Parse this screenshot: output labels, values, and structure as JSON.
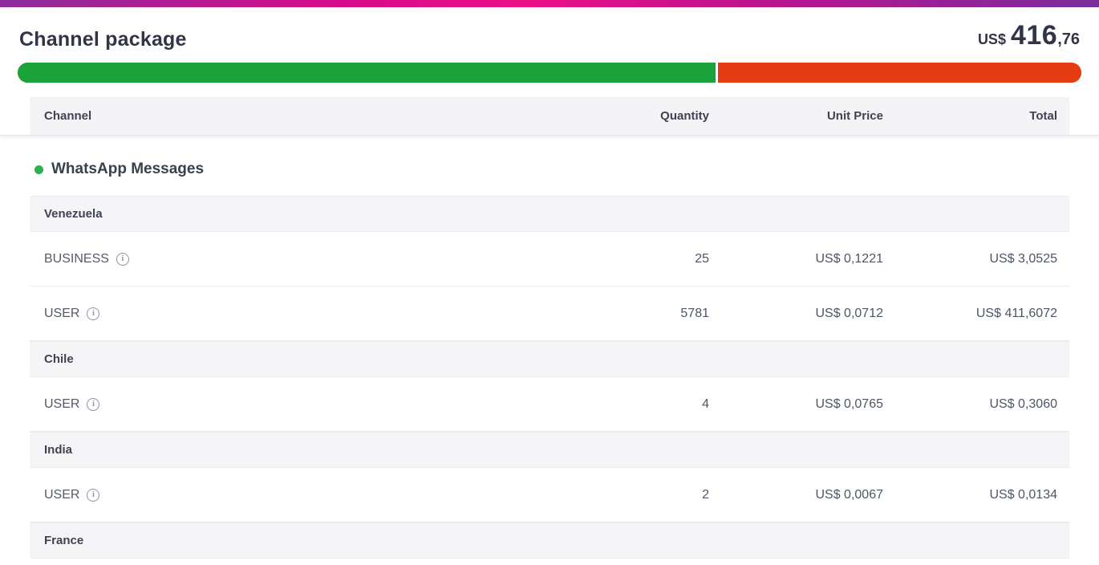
{
  "header": {
    "title": "Channel package",
    "total": {
      "currency": "US$",
      "integer": "416",
      "decimal": ",76"
    }
  },
  "progress": {
    "green_pct": 65.8,
    "green_color": "#1ba33b",
    "red_color": "#e63c14"
  },
  "table": {
    "headers": {
      "channel": "Channel",
      "quantity": "Quantity",
      "unit_price": "Unit Price",
      "total": "Total"
    },
    "section": {
      "label": "WhatsApp Messages",
      "dot_color": "#2bb24c"
    },
    "groups": [
      {
        "name": "Venezuela",
        "rows": [
          {
            "label": "BUSINESS",
            "quantity": "25",
            "unit_price": "US$ 0,1221",
            "total": "US$ 3,0525"
          },
          {
            "label": "USER",
            "quantity": "5781",
            "unit_price": "US$ 0,0712",
            "total": "US$ 411,6072"
          }
        ]
      },
      {
        "name": "Chile",
        "rows": [
          {
            "label": "USER",
            "quantity": "4",
            "unit_price": "US$ 0,0765",
            "total": "US$ 0,3060"
          }
        ]
      },
      {
        "name": "India",
        "rows": [
          {
            "label": "USER",
            "quantity": "2",
            "unit_price": "US$ 0,0067",
            "total": "US$ 0,0134"
          }
        ]
      },
      {
        "name": "France",
        "rows": []
      }
    ]
  }
}
